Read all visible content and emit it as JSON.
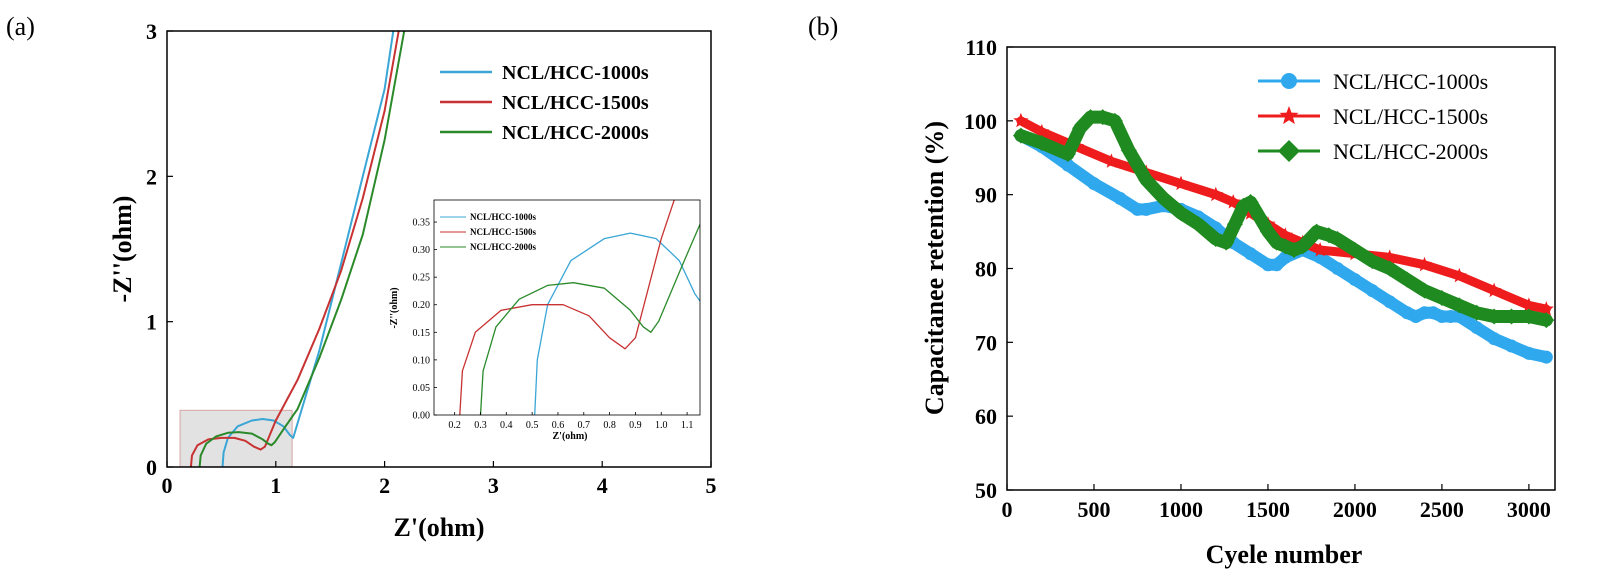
{
  "chart_data": [
    {
      "panel": "(a)",
      "type": "line",
      "xlabel": "Z'(ohm)",
      "ylabel": "-Z''(ohm)",
      "xlim": [
        0,
        5
      ],
      "ylim": [
        0,
        3
      ],
      "xticks": [
        "0",
        "1",
        "2",
        "3",
        "4",
        "5"
      ],
      "yticks": [
        "0",
        "1",
        "2",
        "3"
      ],
      "legend_position": "top-right",
      "colors": {
        "NCL/HCC-1000s": "#3aa6d6",
        "NCL/HCC-1500s": "#c83232",
        "NCL/HCC-2000s": "#2a8a2a"
      },
      "series": [
        {
          "name": "NCL/HCC-1000s",
          "x": [
            0.51,
            0.52,
            0.56,
            0.65,
            0.78,
            0.88,
            0.98,
            1.07,
            1.13,
            1.16,
            1.22,
            1.4,
            1.6,
            1.8,
            2.0,
            2.08
          ],
          "y": [
            0.0,
            0.1,
            0.2,
            0.28,
            0.32,
            0.33,
            0.32,
            0.28,
            0.22,
            0.2,
            0.35,
            0.8,
            1.4,
            2.0,
            2.6,
            3.0
          ]
        },
        {
          "name": "NCL/HCC-1500s",
          "x": [
            0.22,
            0.23,
            0.28,
            0.38,
            0.5,
            0.62,
            0.72,
            0.8,
            0.86,
            0.9,
            1.0,
            1.2,
            1.4,
            1.6,
            1.8,
            2.0,
            2.13
          ],
          "y": [
            0.0,
            0.08,
            0.15,
            0.19,
            0.2,
            0.2,
            0.18,
            0.14,
            0.12,
            0.14,
            0.32,
            0.6,
            0.95,
            1.35,
            1.85,
            2.45,
            3.0
          ]
        },
        {
          "name": "NCL/HCC-2000s",
          "x": [
            0.3,
            0.31,
            0.36,
            0.45,
            0.56,
            0.66,
            0.78,
            0.88,
            0.93,
            0.96,
            0.99,
            1.08,
            1.2,
            1.4,
            1.6,
            1.8,
            2.0,
            2.18
          ],
          "y": [
            0.0,
            0.08,
            0.16,
            0.21,
            0.235,
            0.24,
            0.23,
            0.19,
            0.16,
            0.15,
            0.17,
            0.27,
            0.4,
            0.75,
            1.15,
            1.6,
            2.25,
            3.0
          ]
        }
      ],
      "inset": {
        "xlabel": "Z'(ohm)",
        "ylabel": "-Z''(ohm)",
        "xlim": [
          0.12,
          1.15
        ],
        "ylim": [
          0,
          0.39
        ],
        "xticks": [
          "0.2",
          "0.3",
          "0.4",
          "0.5",
          "0.6",
          "0.7",
          "0.8",
          "0.9",
          "1.0",
          "1.1"
        ],
        "yticks": [
          "0.00",
          "0.05",
          "0.10",
          "0.15",
          "0.20",
          "0.25",
          "0.30",
          "0.35"
        ],
        "legend": [
          "NCL/HCC-1000s",
          "NCL/HCC-1500s",
          "NCL/HCC-2000s"
        ]
      }
    },
    {
      "panel": "(b)",
      "type": "line",
      "xlabel": "Cyele number",
      "ylabel": "Capacitanee retention (%)",
      "xlim": [
        0,
        3150
      ],
      "ylim": [
        50,
        110
      ],
      "xticks": [
        "0",
        "500",
        "1000",
        "1500",
        "2000",
        "2500",
        "3000"
      ],
      "yticks": [
        "50",
        "60",
        "70",
        "80",
        "90",
        "100",
        "110"
      ],
      "legend_position": "top-right",
      "colors": {
        "NCL/HCC-1000s": "#2fa8ee",
        "NCL/HCC-1500s": "#ee1c1c",
        "NCL/HCC-2000s": "#1f8a1f"
      },
      "series": [
        {
          "name": "NCL/HCC-1000s",
          "marker": "circle",
          "x": [
            80,
            200,
            350,
            500,
            650,
            750,
            800,
            900,
            1000,
            1100,
            1200,
            1300,
            1400,
            1500,
            1550,
            1600,
            1700,
            1800,
            1900,
            2000,
            2100,
            2200,
            2300,
            2350,
            2400,
            2450,
            2500,
            2550,
            2600,
            2700,
            2800,
            2900,
            3000,
            3100
          ],
          "y": [
            98,
            96.5,
            94,
            91.5,
            89.5,
            88,
            88,
            88.5,
            88,
            87,
            85.5,
            83.5,
            82,
            80.5,
            80.5,
            81.5,
            82.5,
            81.5,
            80,
            78.5,
            77,
            75.5,
            74,
            73.5,
            74,
            74,
            73.5,
            73.5,
            73.5,
            72,
            70.5,
            69.5,
            68.5,
            68
          ]
        },
        {
          "name": "NCL/HCC-1500s",
          "marker": "star",
          "x": [
            80,
            200,
            400,
            600,
            800,
            1000,
            1200,
            1300,
            1400,
            1500,
            1600,
            1700,
            1800,
            2000,
            2200,
            2400,
            2600,
            2800,
            3000,
            3100
          ],
          "y": [
            100,
            98.5,
            96.5,
            94.5,
            93,
            91.5,
            90,
            89,
            87.5,
            86,
            84.5,
            83.5,
            82.5,
            82,
            81.5,
            80.5,
            79,
            77,
            75,
            74.5
          ]
        },
        {
          "name": "NCL/HCC-2000s",
          "marker": "diamond",
          "x": [
            80,
            200,
            350,
            420,
            480,
            550,
            620,
            700,
            800,
            900,
            1000,
            1100,
            1200,
            1260,
            1310,
            1360,
            1400,
            1450,
            1500,
            1550,
            1600,
            1650,
            1700,
            1780,
            1850,
            1900,
            2000,
            2100,
            2200,
            2300,
            2400,
            2500,
            2600,
            2700,
            2800,
            2900,
            3000,
            3100
          ],
          "y": [
            98,
            97,
            95.5,
            99,
            100.5,
            100.5,
            100,
            96,
            92,
            89.5,
            87.5,
            86,
            84,
            83.5,
            86,
            88.5,
            89,
            87,
            85,
            83.5,
            83,
            82.5,
            83,
            85,
            84.5,
            84,
            82.5,
            81,
            80,
            78.5,
            77,
            76,
            75,
            74,
            73.5,
            73.5,
            73.5,
            73
          ]
        }
      ]
    }
  ]
}
